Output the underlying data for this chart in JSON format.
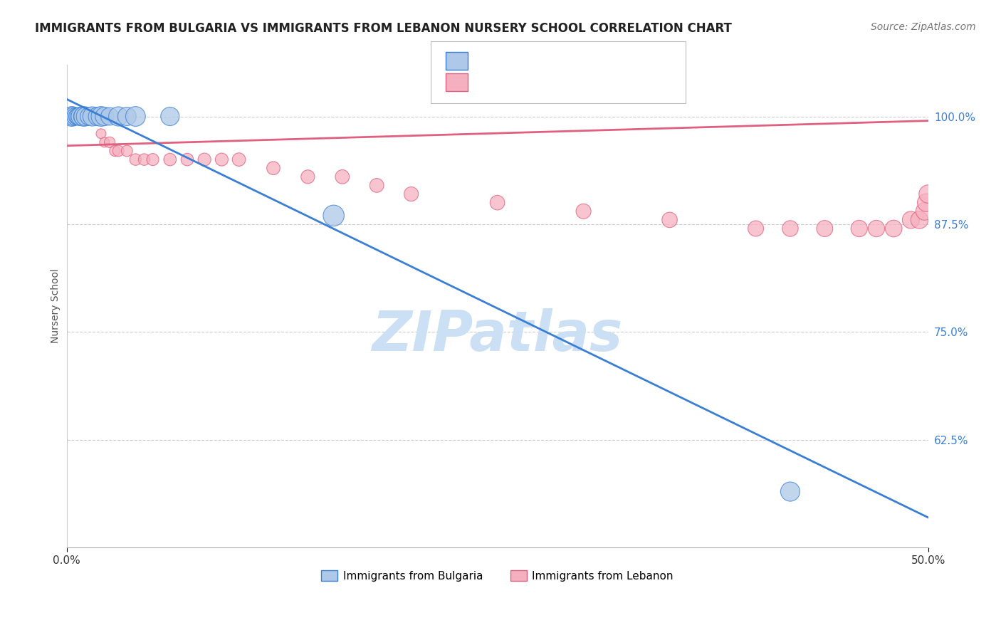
{
  "title": "IMMIGRANTS FROM BULGARIA VS IMMIGRANTS FROM LEBANON NURSERY SCHOOL CORRELATION CHART",
  "source": "Source: ZipAtlas.com",
  "ylabel": "Nursery School",
  "xmin": 0.0,
  "xmax": 0.5,
  "ymin": 0.5,
  "ymax": 1.06,
  "yticks": [
    0.625,
    0.75,
    0.875,
    1.0
  ],
  "ytick_labels": [
    "62.5%",
    "75.0%",
    "87.5%",
    "100.0%"
  ],
  "xticks": [
    0.0,
    0.5
  ],
  "xtick_labels": [
    "0.0%",
    "50.0%"
  ],
  "legend_label1": "Immigrants from Bulgaria",
  "legend_label2": "Immigrants from Lebanon",
  "color_bulgaria": "#adc8e8",
  "color_lebanon": "#f5b0c0",
  "trend_bulgaria": "#3a7fd5",
  "trend_lebanon": "#e06080",
  "watermark": "ZIPatlas",
  "watermark_color": "#cce0f5",
  "bg_color": "#ffffff",
  "grid_color": "#cccccc",
  "bulgaria_scatter_x": [
    0.002,
    0.003,
    0.004,
    0.005,
    0.006,
    0.007,
    0.008,
    0.009,
    0.01,
    0.011,
    0.013,
    0.015,
    0.018,
    0.02,
    0.022,
    0.025,
    0.03,
    0.035,
    0.04,
    0.06,
    0.155,
    0.42
  ],
  "bulgaria_scatter_y": [
    1.0,
    1.0,
    1.0,
    1.0,
    1.0,
    1.0,
    1.0,
    1.0,
    1.0,
    1.0,
    1.0,
    1.0,
    1.0,
    1.0,
    1.0,
    1.0,
    1.0,
    1.0,
    1.0,
    1.0,
    0.885,
    0.565
  ],
  "bulgaria_marker_sizes": [
    300,
    400,
    350,
    300,
    280,
    320,
    350,
    300,
    400,
    350,
    320,
    380,
    350,
    400,
    350,
    320,
    380,
    350,
    400,
    350,
    450,
    380
  ],
  "lebanon_scatter_x": [
    0.001,
    0.002,
    0.003,
    0.004,
    0.005,
    0.006,
    0.007,
    0.008,
    0.009,
    0.01,
    0.011,
    0.012,
    0.013,
    0.014,
    0.015,
    0.016,
    0.017,
    0.018,
    0.02,
    0.022,
    0.025,
    0.028,
    0.03,
    0.035,
    0.04,
    0.045,
    0.05,
    0.06,
    0.07,
    0.08,
    0.09,
    0.1,
    0.12,
    0.14,
    0.16,
    0.18,
    0.2,
    0.25,
    0.3,
    0.35,
    0.4,
    0.42,
    0.44,
    0.46,
    0.47,
    0.48,
    0.49,
    0.495,
    0.498,
    0.499,
    0.5
  ],
  "lebanon_scatter_y": [
    1.0,
    1.0,
    1.0,
    1.0,
    1.0,
    1.0,
    1.0,
    1.0,
    1.0,
    1.0,
    1.0,
    1.0,
    1.0,
    1.0,
    1.0,
    1.0,
    1.0,
    1.0,
    0.98,
    0.97,
    0.97,
    0.96,
    0.96,
    0.96,
    0.95,
    0.95,
    0.95,
    0.95,
    0.95,
    0.95,
    0.95,
    0.95,
    0.94,
    0.93,
    0.93,
    0.92,
    0.91,
    0.9,
    0.89,
    0.88,
    0.87,
    0.87,
    0.87,
    0.87,
    0.87,
    0.87,
    0.88,
    0.88,
    0.89,
    0.9,
    0.91
  ],
  "lebanon_marker_sizes": [
    80,
    80,
    80,
    80,
    80,
    80,
    80,
    80,
    80,
    80,
    80,
    80,
    80,
    80,
    80,
    80,
    80,
    80,
    100,
    100,
    120,
    120,
    130,
    130,
    140,
    140,
    150,
    160,
    160,
    170,
    170,
    180,
    180,
    190,
    200,
    200,
    210,
    220,
    230,
    240,
    250,
    260,
    270,
    280,
    280,
    290,
    300,
    310,
    320,
    330,
    340
  ],
  "bul_trend_x0": 0.0,
  "bul_trend_y0": 1.02,
  "bul_trend_x1": 0.5,
  "bul_trend_y1": 0.535,
  "leb_trend_x0": 0.0,
  "leb_trend_y0": 0.966,
  "leb_trend_x1": 0.5,
  "leb_trend_y1": 0.995
}
